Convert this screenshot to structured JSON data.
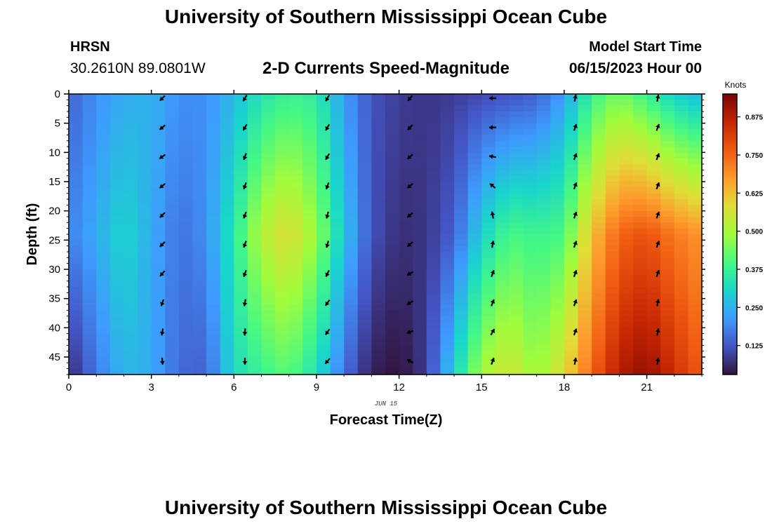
{
  "header": {
    "title": "University of Southern Mississippi Ocean Cube",
    "station": "HRSN",
    "coordinates": "30.2610N  89.0801W",
    "subtitle": "2-D Currents Speed-Magnitude",
    "model_label": "Model Start Time",
    "model_time": "06/15/2023 Hour 00"
  },
  "footer": {
    "title": "University of Southern Mississippi Ocean Cube"
  },
  "chart_data": {
    "type": "heatmap",
    "title": "2-D Currents Speed-Magnitude",
    "xlabel": "Forecast Time(Z)",
    "ylabel": "Depth (ft)",
    "date_label": "JUN 15",
    "xlim": [
      0,
      23
    ],
    "ylim": [
      0,
      48
    ],
    "x_ticks": [
      0,
      3,
      6,
      9,
      12,
      15,
      18,
      21
    ],
    "y_ticks": [
      0,
      5,
      10,
      15,
      20,
      25,
      30,
      35,
      40,
      45
    ],
    "colorbar": {
      "label": "Knots",
      "range": [
        0.03,
        0.95
      ],
      "ticks": [
        "0.125",
        "0.250",
        "0.375",
        "0.500",
        "0.625",
        "0.750",
        "0.875"
      ],
      "tick_values": [
        0.125,
        0.25,
        0.375,
        0.5,
        0.625,
        0.75,
        0.875
      ]
    },
    "speed_profile_by_hour": {
      "hours": [
        0,
        1,
        2,
        3,
        4,
        5,
        6,
        7,
        8,
        9,
        10,
        11,
        12,
        13,
        14,
        15,
        16,
        17,
        18,
        19,
        20,
        21,
        22,
        23
      ],
      "surface": [
        0.14,
        0.2,
        0.24,
        0.25,
        0.2,
        0.2,
        0.26,
        0.34,
        0.38,
        0.36,
        0.22,
        0.12,
        0.09,
        0.08,
        0.09,
        0.11,
        0.12,
        0.14,
        0.22,
        0.38,
        0.45,
        0.38,
        0.3,
        0.26
      ],
      "mid": [
        0.18,
        0.24,
        0.31,
        0.24,
        0.16,
        0.2,
        0.35,
        0.52,
        0.58,
        0.48,
        0.28,
        0.12,
        0.07,
        0.08,
        0.14,
        0.3,
        0.4,
        0.38,
        0.4,
        0.62,
        0.75,
        0.78,
        0.72,
        0.68
      ],
      "bottom": [
        0.06,
        0.17,
        0.26,
        0.24,
        0.15,
        0.14,
        0.32,
        0.38,
        0.42,
        0.33,
        0.16,
        0.05,
        0.03,
        0.09,
        0.3,
        0.5,
        0.56,
        0.48,
        0.58,
        0.75,
        0.88,
        0.92,
        0.84,
        0.76
      ]
    },
    "vectors": {
      "hours": [
        3,
        6,
        9,
        12,
        15,
        18,
        21
      ],
      "depths": [
        0,
        5,
        10,
        15,
        20,
        25,
        30,
        35,
        40,
        45
      ],
      "directions_deg": [
        [
          225,
          230,
          235,
          230,
          225,
          225,
          220,
          200,
          190,
          175
        ],
        [
          210,
          210,
          200,
          200,
          200,
          200,
          200,
          190,
          185,
          180
        ],
        [
          210,
          210,
          210,
          200,
          195,
          195,
          205,
          215,
          215,
          220
        ],
        [
          220,
          225,
          230,
          230,
          230,
          230,
          240,
          240,
          250,
          300
        ],
        [
          270,
          270,
          280,
          310,
          350,
          10,
          20,
          20,
          30,
          20
        ],
        [
          10,
          20,
          20,
          20,
          20,
          20,
          20,
          20,
          20,
          10
        ],
        [
          10,
          20,
          20,
          20,
          20,
          20,
          20,
          10,
          10,
          10
        ]
      ]
    }
  }
}
